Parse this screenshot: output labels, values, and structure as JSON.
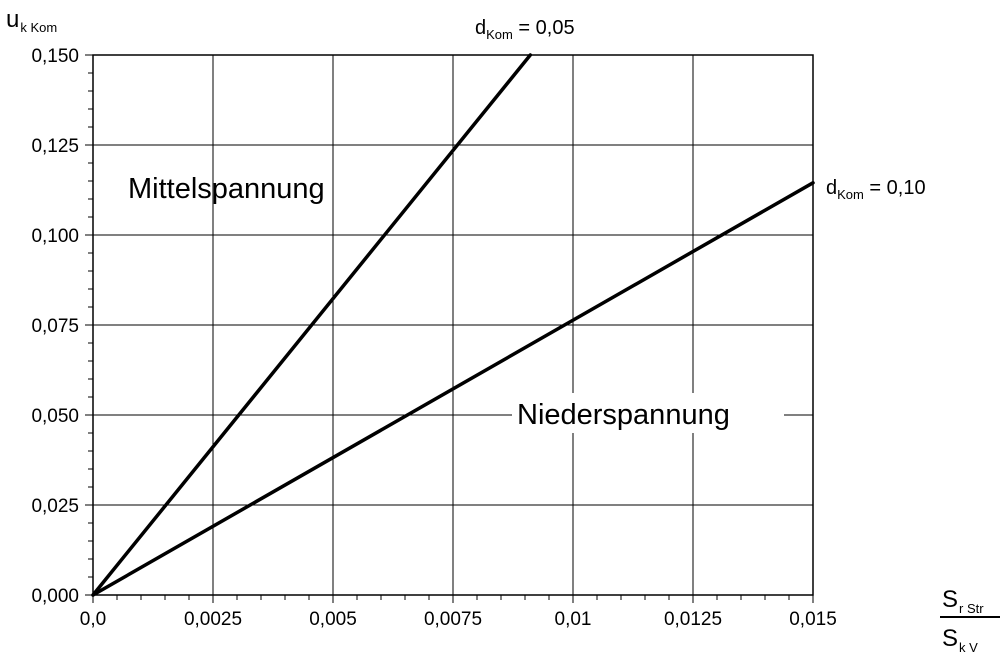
{
  "chart_data": {
    "type": "line",
    "x": [
      0,
      0.0025,
      0.005,
      0.0075,
      0.01,
      0.0125,
      0.015
    ],
    "xlim": [
      0,
      0.015
    ],
    "ylim": [
      0,
      0.15
    ],
    "x_ticks": [
      "0,0",
      "0,0025",
      "0,005",
      "0,0075",
      "0,01",
      "0,0125",
      "0,015"
    ],
    "y_ticks": [
      "0,000",
      "0,025",
      "0,050",
      "0,075",
      "0,100",
      "0,125",
      "0,150"
    ],
    "ylabel": {
      "main": "u",
      "sub": "k Kom"
    },
    "xlabel": {
      "num_main": "S",
      "num_sub": "r Str",
      "den_main": "S",
      "den_sub": "k V"
    },
    "grid": true,
    "series": [
      {
        "name": "dKom = 0,05",
        "label_main": "d",
        "label_sub": "Kom",
        "label_value": " = 0,05",
        "points": [
          [
            0,
            0
          ],
          [
            0.00911,
            0.15
          ]
        ]
      },
      {
        "name": "dKom = 0,10",
        "label_main": "d",
        "label_sub": "Kom",
        "label_value": " = 0,10",
        "points": [
          [
            0,
            0
          ],
          [
            0.015,
            0.1145
          ]
        ]
      }
    ],
    "annotations": [
      {
        "text": "Mittelspannung"
      },
      {
        "text": "Niederspannung"
      }
    ]
  }
}
